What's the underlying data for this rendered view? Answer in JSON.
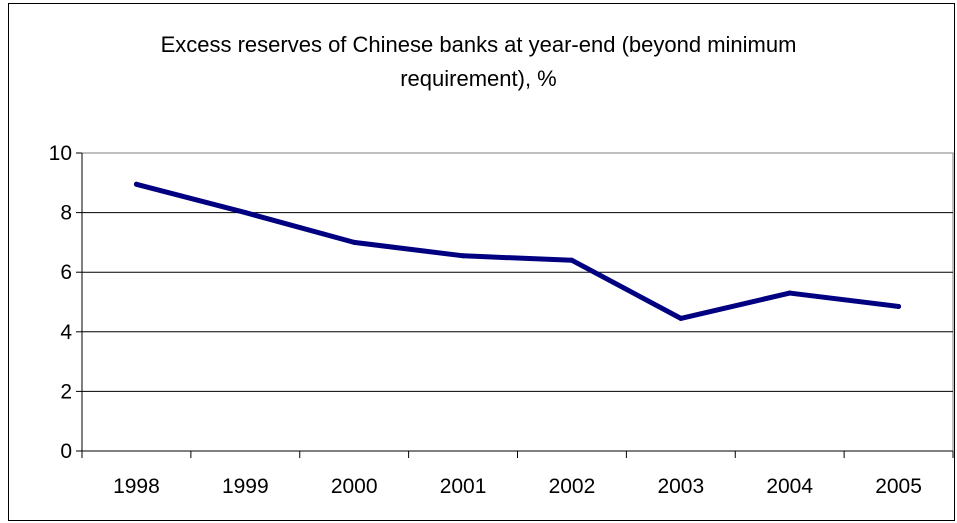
{
  "chart_data": {
    "type": "line",
    "title_lines": [
      "Excess reserves of Chinese banks at year-end (beyond minimum",
      "requirement), %"
    ],
    "categories": [
      "1998",
      "1999",
      "2000",
      "2001",
      "2002",
      "2003",
      "2004",
      "2005"
    ],
    "series": [
      {
        "values": [
          8.95,
          8.0,
          7.0,
          6.55,
          6.4,
          4.45,
          5.3,
          4.85
        ],
        "color": "#000080"
      }
    ],
    "y_ticks": [
      "0",
      "2",
      "4",
      "6",
      "8",
      "10"
    ],
    "ylim": [
      0,
      10
    ],
    "grid": true,
    "legend": "none"
  }
}
